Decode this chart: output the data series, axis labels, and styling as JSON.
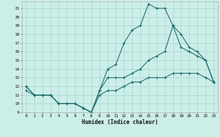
{
  "xlabel": "Humidex (Indice chaleur)",
  "xlim": [
    -0.5,
    23.5
  ],
  "ylim": [
    9,
    21.8
  ],
  "yticks": [
    9,
    10,
    11,
    12,
    13,
    14,
    15,
    16,
    17,
    18,
    19,
    20,
    21
  ],
  "xticks": [
    0,
    1,
    2,
    3,
    4,
    5,
    6,
    7,
    8,
    9,
    10,
    11,
    12,
    13,
    14,
    15,
    16,
    17,
    18,
    19,
    20,
    21,
    22,
    23
  ],
  "bg_color": "#cceee8",
  "grid_color": "#aad8d0",
  "line_color": "#1a6b6b",
  "line1_x": [
    0,
    1,
    2,
    3,
    4,
    5,
    6,
    7,
    8,
    9,
    10,
    11,
    12,
    13,
    14,
    15,
    16,
    17,
    18,
    19,
    20,
    21,
    22,
    23
  ],
  "line1_y": [
    12,
    11,
    11,
    11,
    10,
    10,
    10,
    9.5,
    9,
    11.5,
    14,
    14.5,
    17,
    18.5,
    19,
    21.5,
    21,
    21,
    19,
    18,
    16.5,
    16,
    15,
    12.5
  ],
  "line2_x": [
    0,
    1,
    2,
    3,
    4,
    5,
    6,
    7,
    8,
    9,
    10,
    11,
    12,
    13,
    14,
    15,
    16,
    17,
    18,
    19,
    20,
    21,
    22,
    23
  ],
  "line2_y": [
    12,
    11,
    11,
    11,
    10,
    10,
    10,
    9.5,
    9,
    11.5,
    13,
    13,
    13,
    13.5,
    14,
    15,
    15.5,
    16,
    19,
    16.5,
    16,
    15.5,
    15,
    12.5
  ],
  "line3_x": [
    0,
    1,
    2,
    3,
    4,
    5,
    6,
    7,
    8,
    9,
    10,
    11,
    12,
    13,
    14,
    15,
    16,
    17,
    18,
    19,
    20,
    21,
    22,
    23
  ],
  "line3_y": [
    11.5,
    11,
    11,
    11,
    10,
    10,
    10,
    9.5,
    9,
    11,
    11.5,
    11.5,
    12,
    12.5,
    12.5,
    13,
    13,
    13,
    13.5,
    13.5,
    13.5,
    13.5,
    13,
    12.5
  ]
}
